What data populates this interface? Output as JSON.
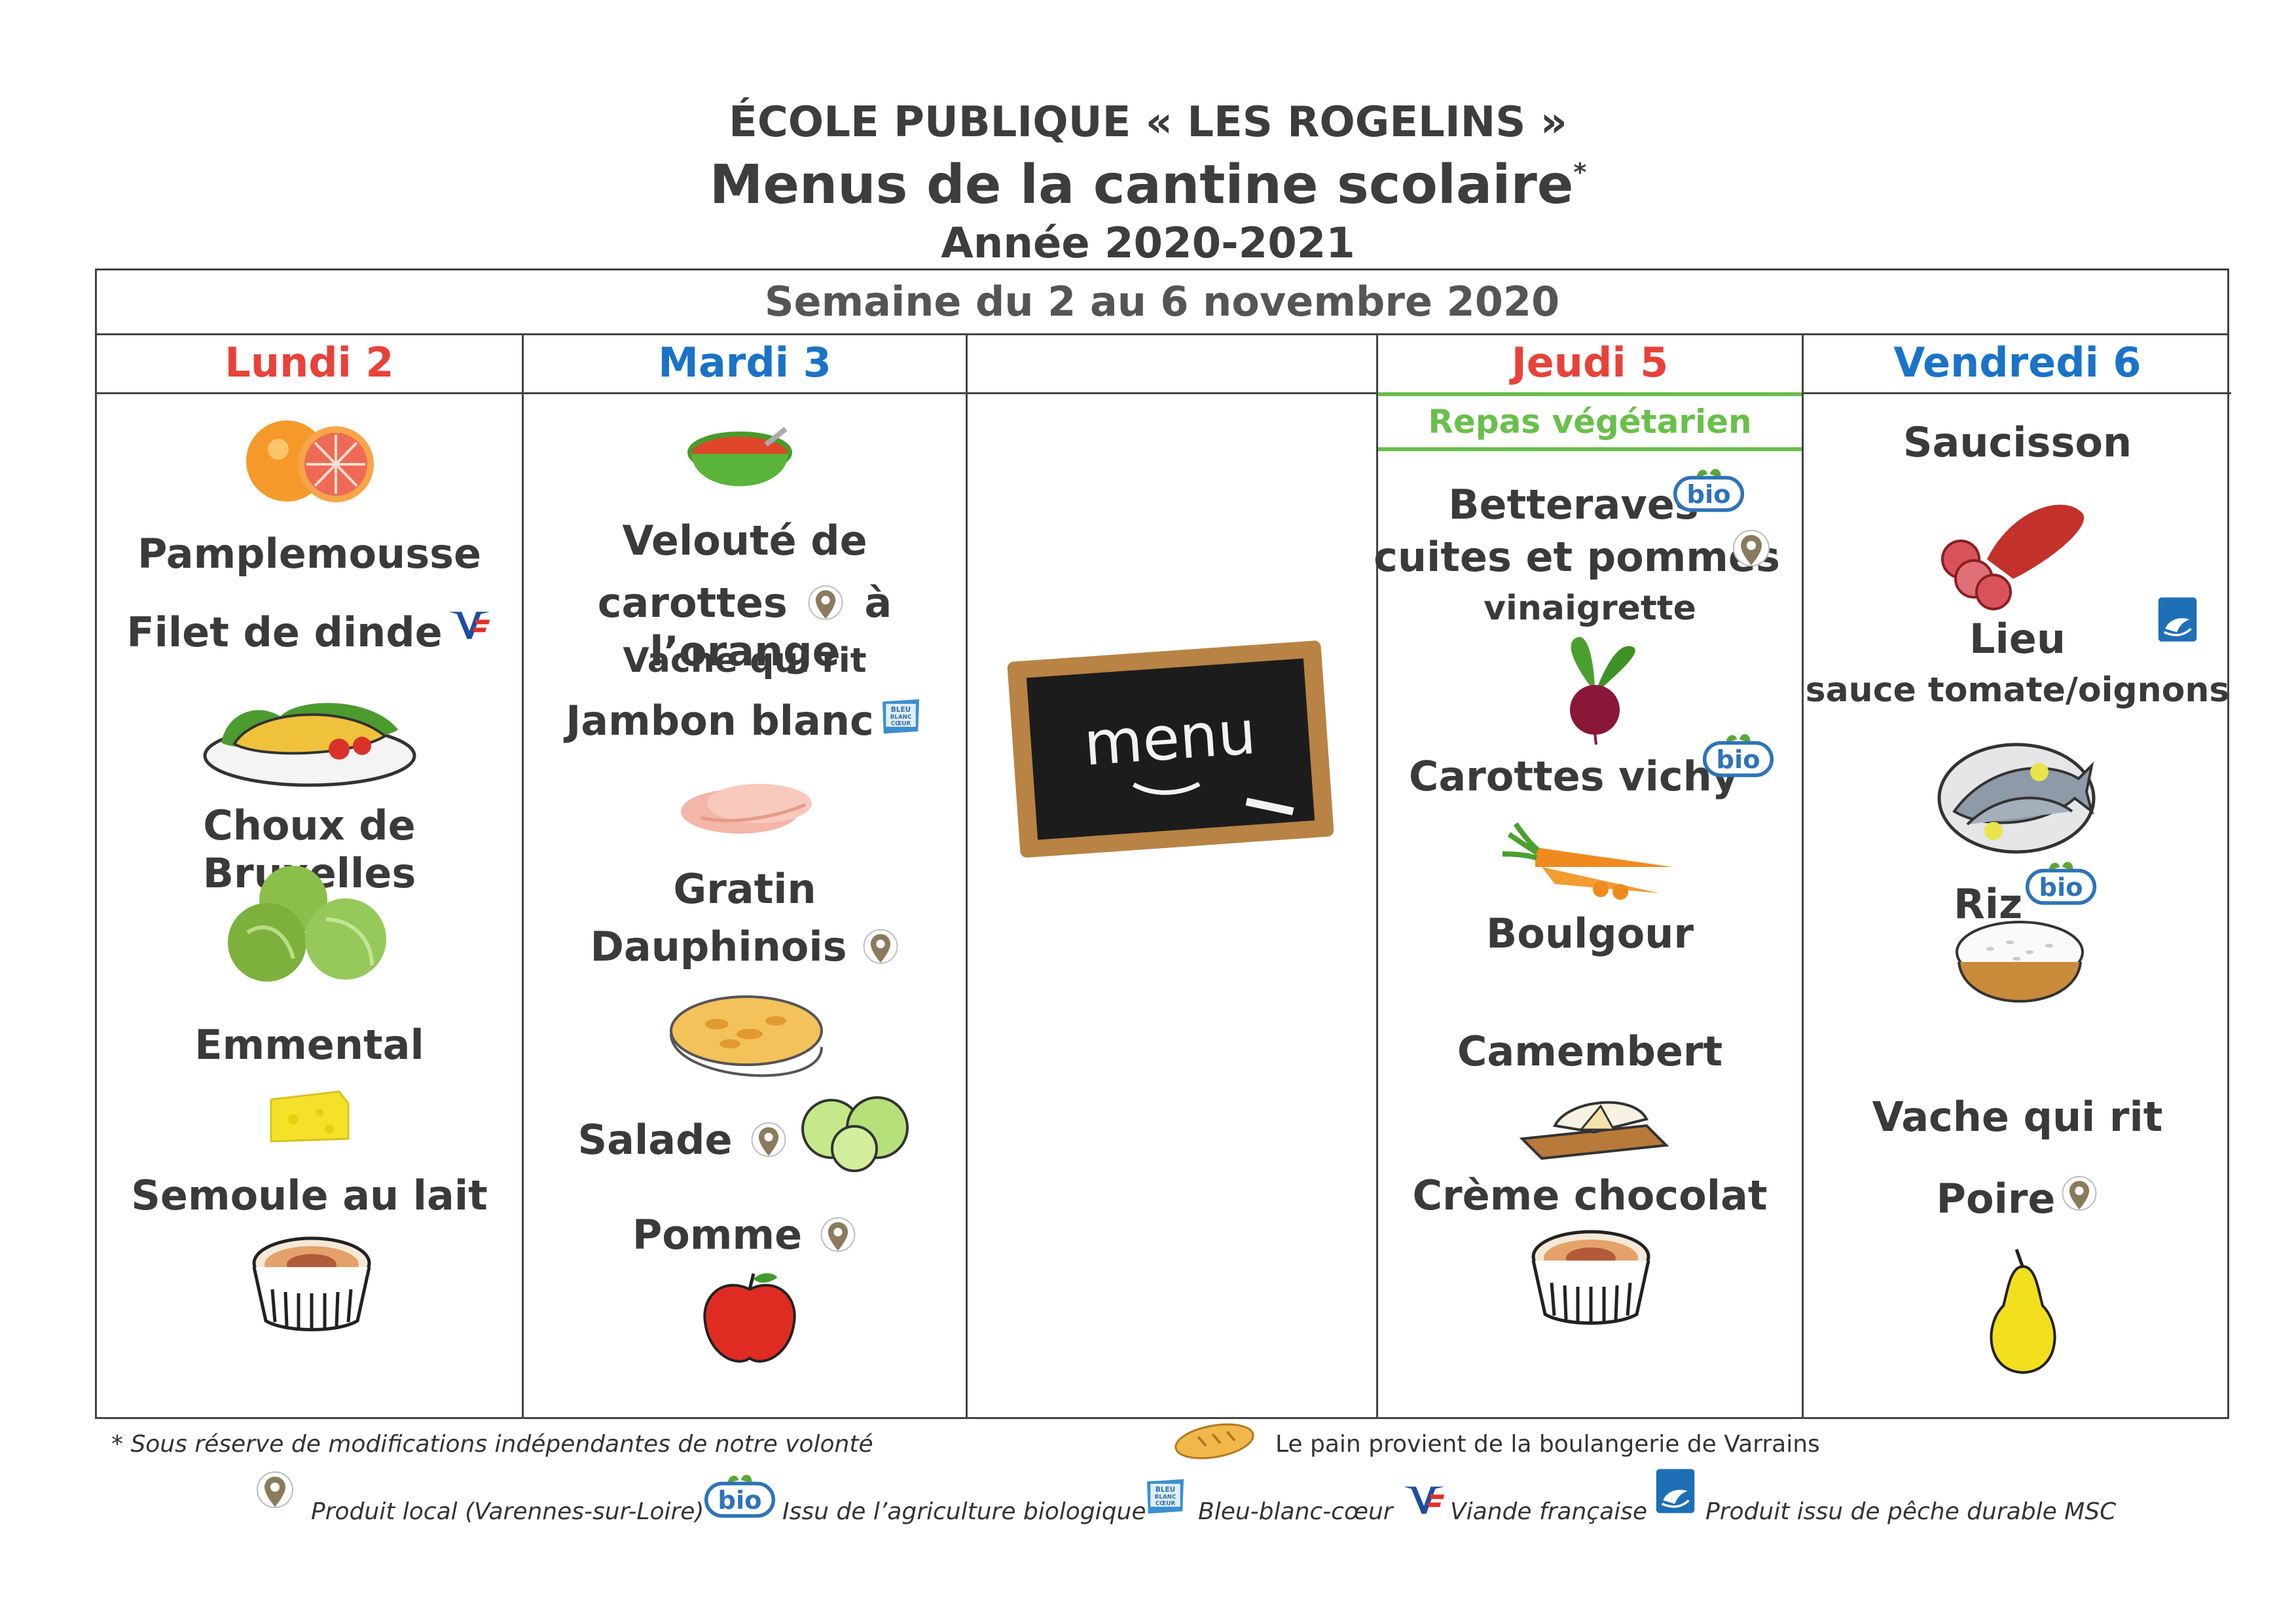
{
  "header": {
    "school": "ÉCOLE PUBLIQUE « LES ROGELINS »",
    "title": "Menus de la cantine scolaire",
    "title_mark": "*",
    "year": "Année 2020-2021"
  },
  "week": "Semaine du 2 au 6 novembre 2020",
  "days": {
    "mon": {
      "label": "Lundi 2",
      "items": [
        "Pamplemousse",
        "Filet de dinde",
        "Choux de Bruxelles",
        "Emmental",
        "Semoule au lait"
      ]
    },
    "tue": {
      "label": "Mardi 3",
      "items": [
        "Velouté de",
        "carottes",
        "à l’orange",
        "Vache qui rit",
        "Jambon blanc",
        "Gratin",
        "Dauphinois",
        "Salade",
        "Pomme"
      ]
    },
    "wed": {
      "board_text": "menu"
    },
    "thu": {
      "label": "Jeudi 5",
      "veg": "Repas végétarien",
      "items": [
        "Betteraves",
        "cuites et pommes",
        "vinaigrette",
        "Carottes vichy",
        "Boulgour",
        "Camembert",
        "Crème chocolat"
      ]
    },
    "fri": {
      "label": "Vendredi 6",
      "items": [
        "Saucisson",
        "Lieu",
        "sauce tomate/oignons",
        "Riz",
        "Vache qui rit",
        "Poire"
      ]
    }
  },
  "badges": {
    "bio": "bio",
    "bbc": "BLEU BLANC CŒUR",
    "vf": "VF",
    "msc": "MSC"
  },
  "footer": {
    "note": "* Sous réserve de modifications indépendantes de notre volonté",
    "bread": "Le pain provient de la boulangerie de Varrains",
    "legend_local": "Produit local (Varennes-sur-Loire)",
    "legend_bio": "Issu de l’agriculture biologique",
    "legend_bbc": "Bleu-blanc-cœur",
    "legend_vf": "Viande française",
    "legend_msc": "Produit issu de pêche durable MSC"
  },
  "colors": {
    "red": "#e8423a",
    "blue": "#1a73c7",
    "green": "#6abf4b",
    "border": "#444444"
  }
}
